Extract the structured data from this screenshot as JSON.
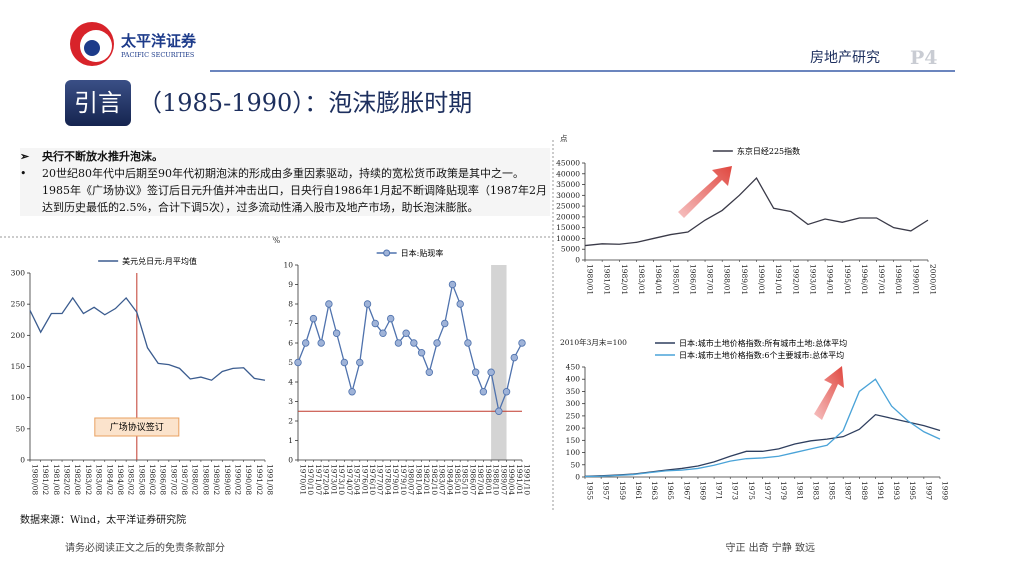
{
  "header": {
    "logo": "太平洋证券",
    "logo_en": "PACIFIC SECURITIES",
    "section": "房地产研究",
    "page": "P4",
    "badge": "引言",
    "title": "（1985-1990）：泡沫膨胀时期"
  },
  "body": [
    {
      "marker": "➢",
      "text": "央行不断放水推升泡沫。"
    },
    {
      "marker": "•",
      "text": "20世纪80年代中后期至90年代初期泡沫的形成由多重因素驱动，持续的宽松货币政策是其中之一。1985年《广场协议》签订后日元升值并冲击出口，日央行自1986年1月起不断调降贴现率（1987年2月达到历史最低的2.5%，合计下调5次），过多流动性涌入股市及地产市场，助长泡沫膨胀。"
    }
  ],
  "chart_data": [
    {
      "type": "line",
      "legend": "upper center",
      "categories": [
        "1980/08",
        "1981/02",
        "1981/08",
        "1982/02",
        "1982/08",
        "1983/02",
        "1983/08",
        "1984/02",
        "1984/08",
        "1985/02",
        "1985/08",
        "1986/02",
        "1986/08",
        "1987/02",
        "1987/08",
        "1988/02",
        "1988/08",
        "1989/02",
        "1989/08",
        "1990/02",
        "1990/08",
        "1991/02",
        "1991/08"
      ],
      "series": [
        {
          "name": "美元兑日元:月平均值",
          "color": "#3b5c8f",
          "values": [
            240,
            205,
            235,
            235,
            260,
            235,
            245,
            233,
            243,
            260,
            237,
            180,
            155,
            153,
            147,
            130,
            133,
            128,
            142,
            147,
            148,
            131,
            128
          ]
        }
      ],
      "ylim": [
        0,
        300
      ],
      "yticks": [
        0,
        50,
        100,
        150,
        200,
        250,
        300
      ],
      "event": {
        "label": "广场协议签订",
        "category": 10,
        "color": "#c0392b"
      }
    },
    {
      "type": "line",
      "legend": "upper center",
      "ylabel": "%",
      "markers": true,
      "categories": [
        "1970/01",
        "1970/10",
        "1971/07",
        "1972/04",
        "1973/01",
        "1973/10",
        "1974/07",
        "1975/04",
        "1976/01",
        "1976/10",
        "1977/07",
        "1978/04",
        "1979/01",
        "1979/10",
        "1980/07",
        "1981/04",
        "1982/01",
        "1982/10",
        "1983/07",
        "1984/04",
        "1985/01",
        "1985/10",
        "1986/07",
        "1987/04",
        "1988/01",
        "1988/10",
        "1989/07",
        "1990/04",
        "1991/01",
        "1991/10"
      ],
      "series": [
        {
          "name": "日本:贴现率",
          "color": "#4f72ad",
          "values": [
            5.0,
            6.0,
            7.25,
            6.0,
            8.0,
            6.5,
            5.0,
            3.5,
            5.0,
            8.0,
            7.0,
            6.5,
            7.25,
            6.0,
            6.5,
            6.0,
            5.5,
            4.5,
            6.0,
            7.0,
            9.0,
            8.0,
            6.0,
            4.5,
            3.5,
            4.5,
            2.5,
            3.5,
            5.25,
            6.0
          ]
        }
      ],
      "ylim": [
        0,
        10
      ],
      "yticks": [
        0,
        1,
        2,
        3,
        4,
        5,
        6,
        7,
        8,
        9,
        10
      ],
      "hline": {
        "value": 2.5,
        "color": "#c0392b"
      },
      "shade": [
        25,
        27
      ]
    },
    {
      "type": "line",
      "legend": "upper center",
      "ylabel": "点",
      "categories": [
        "1980/01",
        "1981/01",
        "1982/01",
        "1983/01",
        "1984/01",
        "1985/01",
        "1986/01",
        "1987/01",
        "1988/01",
        "1989/01",
        "1990/01",
        "1991/01",
        "1992/01",
        "1993/01",
        "1994/01",
        "1995/01",
        "1996/01",
        "1997/01",
        "1998/01",
        "1999/01",
        "2000/01"
      ],
      "series": [
        {
          "name": "东京日经225指数",
          "color": "#3a3a48",
          "values": [
            6700,
            7500,
            7300,
            8200,
            10000,
            11800,
            13000,
            18500,
            23000,
            30000,
            38000,
            24000,
            22500,
            16500,
            19000,
            17500,
            19500,
            19500,
            15000,
            13500,
            18500
          ]
        }
      ],
      "ylim": [
        0,
        45000
      ],
      "yticks": [
        0,
        5000,
        10000,
        15000,
        20000,
        25000,
        30000,
        35000,
        40000,
        45000
      ]
    },
    {
      "type": "line",
      "legend": "upper left",
      "ylabel": "2010年3月末=100",
      "categories": [
        "1955",
        "1957",
        "1959",
        "1961",
        "1963",
        "1965",
        "1967",
        "1969",
        "1971",
        "1973",
        "1975",
        "1977",
        "1979",
        "1981",
        "1983",
        "1985",
        "1987",
        "1989",
        "1991",
        "1993",
        "1995",
        "1997",
        "1999"
      ],
      "series": [
        {
          "name": "日本:城市土地价格指数:所有城市土地:总体平均",
          "color": "#2f3f5f",
          "values": [
            3,
            5,
            8,
            12,
            20,
            28,
            35,
            45,
            62,
            85,
            105,
            105,
            115,
            135,
            148,
            155,
            165,
            195,
            255,
            240,
            225,
            210,
            190
          ]
        },
        {
          "name": "日本:城市土地价格指数:6个主要城市:总体平均",
          "color": "#4aa3d8",
          "values": [
            2,
            3,
            6,
            10,
            18,
            25,
            28,
            35,
            48,
            65,
            75,
            78,
            85,
            100,
            115,
            130,
            190,
            350,
            400,
            290,
            230,
            185,
            155
          ]
        }
      ],
      "ylim": [
        0,
        450
      ],
      "yticks": [
        0,
        50,
        100,
        150,
        200,
        250,
        300,
        350,
        400,
        450
      ]
    }
  ],
  "source": "数据来源：Wind，太平洋证券研究院",
  "footer": {
    "left": "请务必阅读正文之后的免责条款部分",
    "right": "守正  出奇  宁静  致远"
  }
}
